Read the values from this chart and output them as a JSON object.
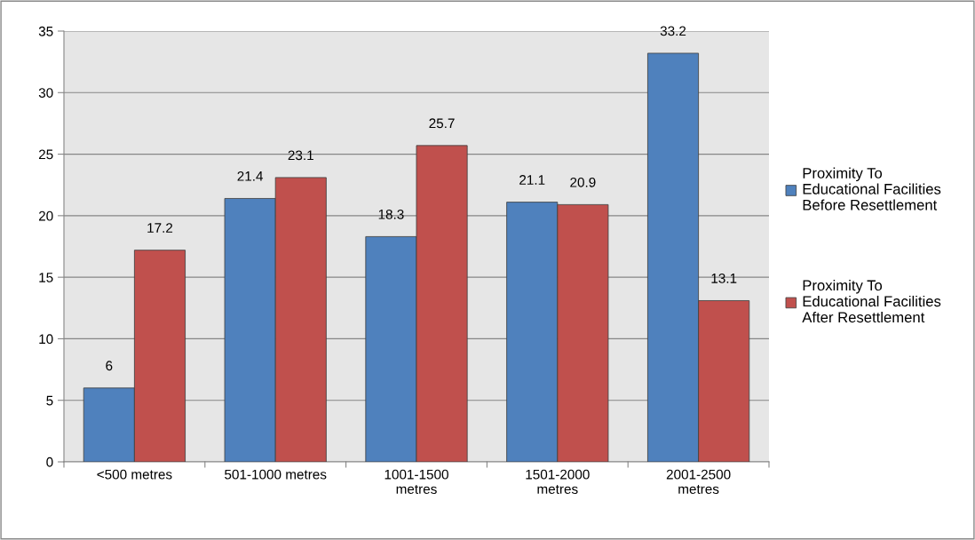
{
  "chart_data": {
    "type": "bar",
    "categories": [
      "<500 metres",
      "501-1000 metres",
      "1001-1500\nmetres",
      "1501-2000\nmetres",
      "2001-2500\nmetres"
    ],
    "series": [
      {
        "name": "Proximity To\nEducational Facilities\nBefore Resettlement",
        "color": "#4f81bd",
        "values": [
          6,
          21.4,
          18.3,
          21.1,
          33.2
        ]
      },
      {
        "name": "Proximity To\nEducational Facilities\nAfter Resettlement",
        "color": "#c0504d",
        "values": [
          17.2,
          23.1,
          25.7,
          20.9,
          13.1
        ]
      }
    ],
    "ylim": [
      0,
      35
    ],
    "yticks": [
      0,
      5,
      10,
      15,
      20,
      25,
      30,
      35
    ],
    "grid": "y",
    "legend": "right",
    "data_labels": true
  }
}
